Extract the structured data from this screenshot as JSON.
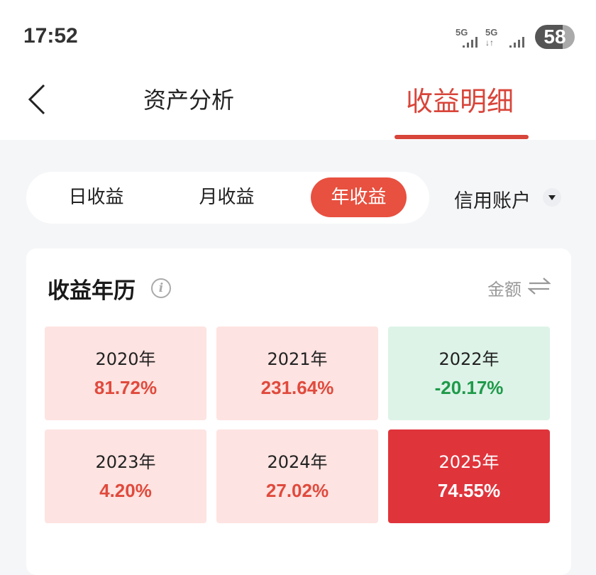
{
  "status_bar": {
    "time": "17:52",
    "sim1": "5G",
    "sim2": "5G",
    "battery": "58"
  },
  "header": {
    "tabs": [
      {
        "label": "资产分析",
        "active": false
      },
      {
        "label": "收益明细",
        "active": true
      }
    ]
  },
  "segment": {
    "items": [
      {
        "label": "日收益",
        "selected": false
      },
      {
        "label": "月收益",
        "selected": false
      },
      {
        "label": "年收益",
        "selected": true
      }
    ],
    "account": "信用账户"
  },
  "card": {
    "title": "收益年历",
    "info_icon": "i",
    "toggle_label": "金额",
    "cells": [
      {
        "year": "2020年",
        "value": "81.72%",
        "tone": "positive"
      },
      {
        "year": "2021年",
        "value": "231.64%",
        "tone": "positive"
      },
      {
        "year": "2022年",
        "value": "-20.17%",
        "tone": "negative"
      },
      {
        "year": "2023年",
        "value": "4.20%",
        "tone": "positive"
      },
      {
        "year": "2024年",
        "value": "27.02%",
        "tone": "positive"
      },
      {
        "year": "2025年",
        "value": "74.55%",
        "tone": "highlight"
      }
    ]
  },
  "colors": {
    "accent": "#d8453a",
    "positive": "#e04a3d",
    "negative": "#1f9a4a",
    "highlight": "#e0343b"
  }
}
